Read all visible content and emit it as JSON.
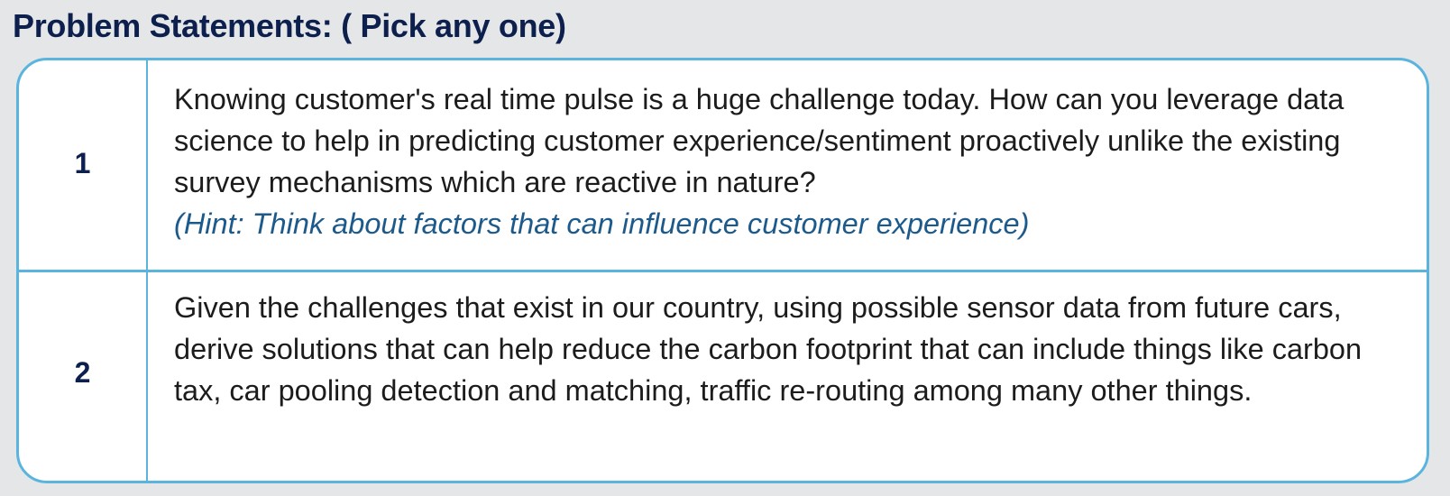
{
  "page": {
    "title": "Problem Statements: ( Pick any one)"
  },
  "problems": [
    {
      "number": "1",
      "text": "Knowing customer's real time pulse is a huge challenge today. How can you leverage data science to help in predicting customer experience/sentiment proactively unlike the existing survey mechanisms which are reactive in nature?",
      "hint": "(Hint: Think about factors that can influence customer experience)"
    },
    {
      "number": "2",
      "text": "Given the challenges that exist in our country, using possible sensor data from future cars, derive solutions that can help reduce the carbon footprint that can include things like carbon tax, car pooling detection and matching, traffic re-routing among many other things."
    }
  ],
  "colors": {
    "background": "#e5e6e8",
    "title": "#0d1f4c",
    "border": "#5ab4de",
    "body_text": "#1c1c1c",
    "hint_text": "#1d5a8c"
  }
}
